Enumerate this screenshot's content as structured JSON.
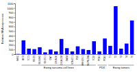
{
  "chart_data": {
    "type": "bar",
    "y_label": "Relative RNA expression",
    "categories": [
      "hMSC",
      "A673",
      "TC71",
      "RD-ES",
      "SK-N-MC",
      "SK-ES-1",
      "EW7",
      "CHLA-10",
      "CHLA-258",
      "EW24",
      "STA-ET-1",
      "POE",
      "MHH-ES-1",
      "SK-PN-DW",
      "TC32",
      "PDX1",
      "PDX2",
      "T1",
      "T2",
      "T3",
      "T4",
      "T5"
    ],
    "values": [
      5,
      300,
      120,
      110,
      150,
      40,
      100,
      60,
      330,
      130,
      60,
      170,
      110,
      90,
      280,
      60,
      340,
      180,
      1040,
      120,
      230,
      730
    ],
    "color": "#0000ff",
    "ylim": [
      0,
      1100
    ],
    "yticks": [
      0,
      100,
      200,
      300,
      400,
      500,
      600,
      700,
      800,
      900,
      1000,
      1100
    ],
    "grid": false,
    "groups": [
      {
        "label": "Ewing sarcoma cell lines",
        "categories": [
          "A673",
          "TC71",
          "RD-ES",
          "SK-N-MC",
          "SK-ES-1",
          "EW7",
          "CHLA-10",
          "CHLA-258",
          "EW24",
          "STA-ET-1",
          "POE",
          "MHH-ES-1",
          "SK-PN-DW",
          "TC32"
        ]
      },
      {
        "label": "PDX",
        "categories": [
          "PDX1",
          "PDX2"
        ]
      },
      {
        "label": "Ewing tumors",
        "categories": [
          "T1",
          "T2",
          "T3",
          "T4",
          "T5"
        ]
      }
    ]
  }
}
